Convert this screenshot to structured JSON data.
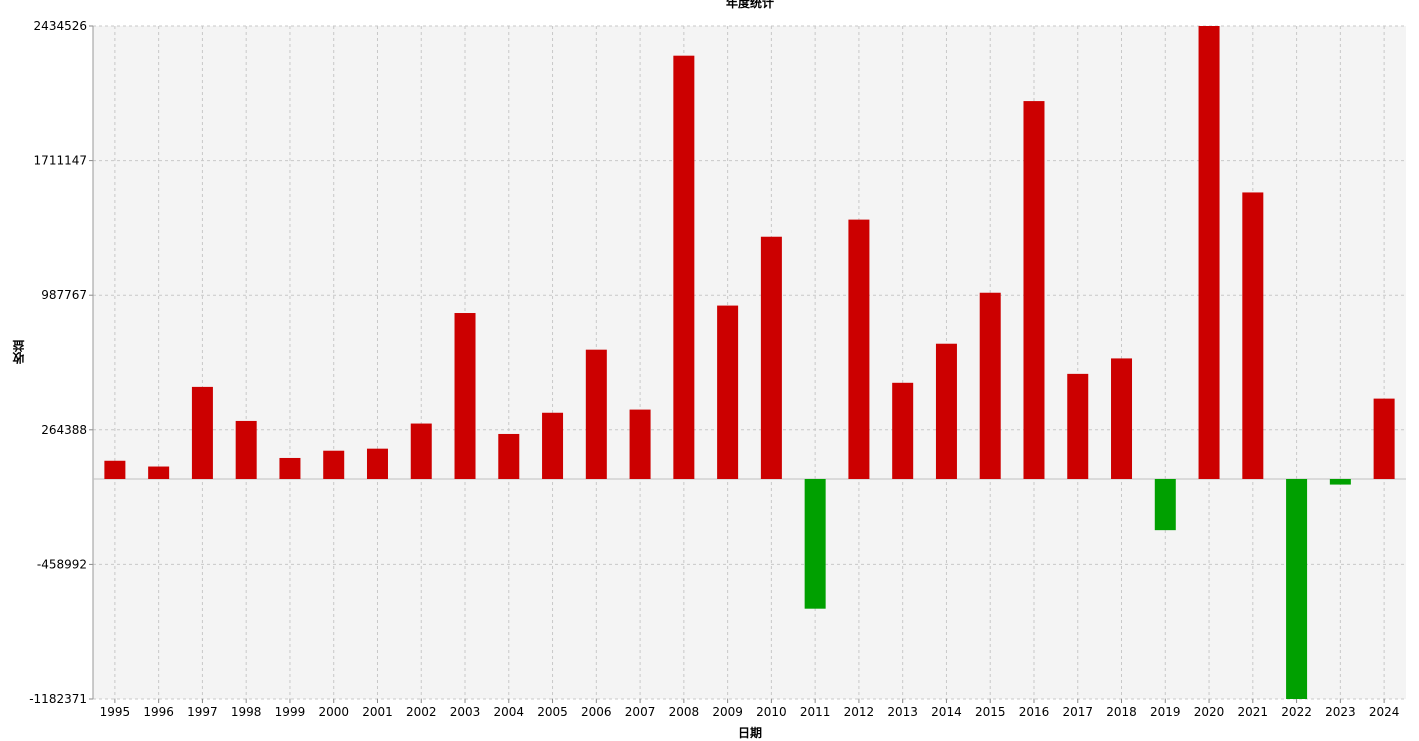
{
  "chart_data": {
    "type": "bar",
    "title": "年度统计",
    "xlabel": "日期",
    "ylabel": "收益",
    "ylim": [
      -1182371,
      2434526
    ],
    "yticks": [
      "2434526",
      "1711147",
      "987767",
      "264388",
      "-458992",
      "-1182371"
    ],
    "ytick_values": [
      2434526,
      1711147,
      987767,
      264388,
      -458992,
      -1182371
    ],
    "grid": true,
    "categories": [
      "1995",
      "1996",
      "1997",
      "1998",
      "1999",
      "2000",
      "2001",
      "2002",
      "2003",
      "2004",
      "2005",
      "2006",
      "2007",
      "2008",
      "2009",
      "2010",
      "2011",
      "2012",
      "2013",
      "2014",
      "2015",
      "2016",
      "2017",
      "2018",
      "2019",
      "2020",
      "2021",
      "2022",
      "2023",
      "2024"
    ],
    "values": [
      98000,
      67000,
      495000,
      312000,
      113000,
      152000,
      163000,
      298000,
      892000,
      242000,
      356000,
      695000,
      373000,
      2275000,
      932000,
      1302000,
      -697000,
      1394000,
      517000,
      727000,
      1001000,
      2031000,
      565000,
      648000,
      -275000,
      2434526,
      1540000,
      -1182371,
      -30000,
      432000
    ],
    "colors": {
      "positive": "#cc0000",
      "negative": "#00a000",
      "plot_bg": "#f4f4f4",
      "grid": "#c8c8c8",
      "zero_line": "#c0c0c0"
    }
  }
}
